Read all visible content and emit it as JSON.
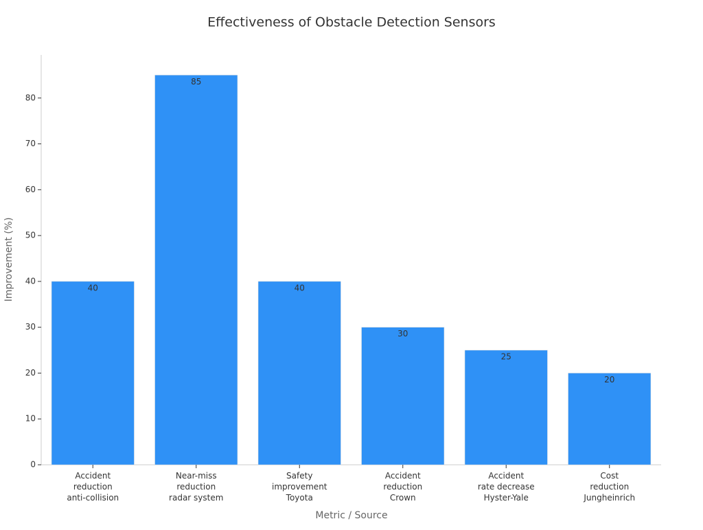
{
  "chart_data": {
    "type": "bar",
    "title": "Effectiveness of Obstacle Detection Sensors",
    "x_label": "Metric / Source",
    "y_label": "Improvement (%)",
    "categories": [
      [
        "Accident",
        "reduction",
        "anti-collision"
      ],
      [
        "Near-miss",
        "reduction",
        "radar system"
      ],
      [
        "Safety",
        "improvement",
        "Toyota"
      ],
      [
        "Accident",
        "reduction",
        "Crown"
      ],
      [
        "Accident",
        "rate decrease",
        "Hyster-Yale"
      ],
      [
        "Cost",
        "reduction",
        "Jungheinrich"
      ]
    ],
    "values": [
      40,
      85,
      40,
      30,
      25,
      20
    ],
    "color": "#2f91f6",
    "ylim": [
      0,
      89.4
    ],
    "yticks": [
      0,
      10,
      20,
      30,
      40,
      50,
      60,
      70,
      80
    ],
    "grid": false
  }
}
